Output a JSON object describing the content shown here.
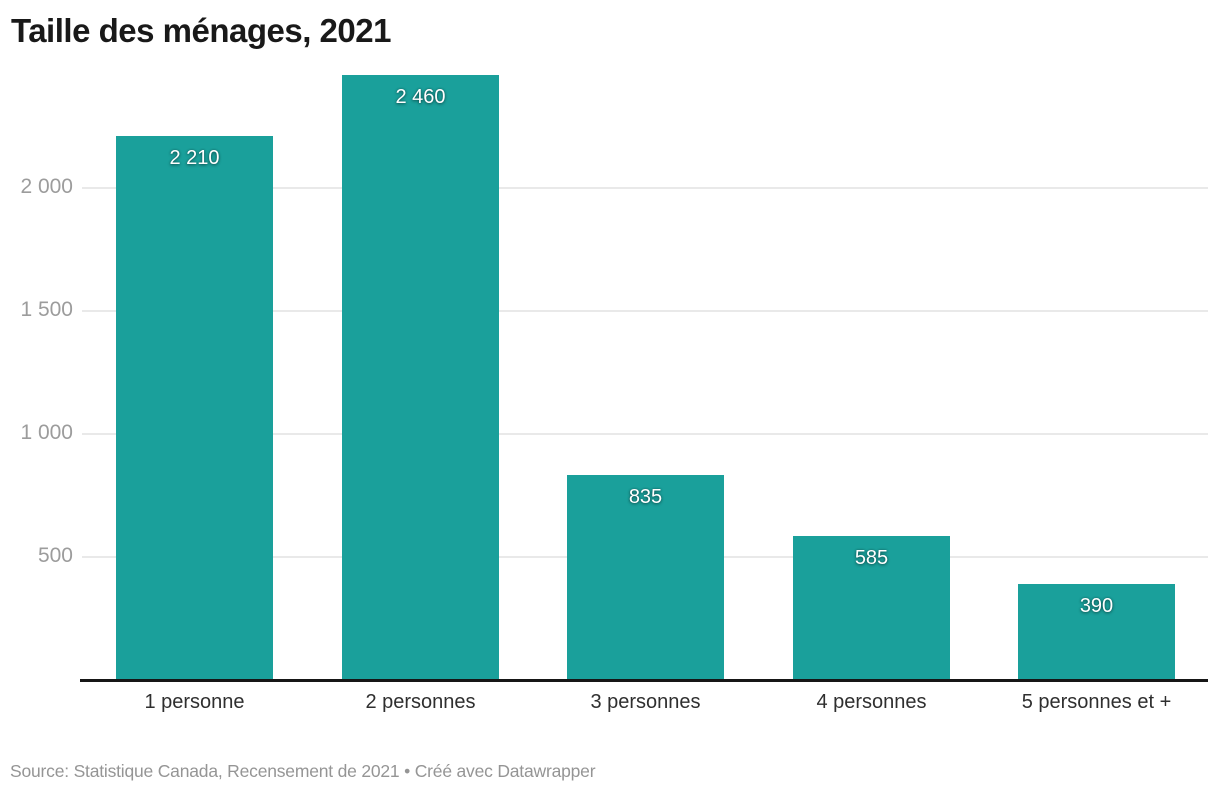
{
  "page": {
    "title": "Taille des ménages, 2021",
    "source": "Source: Statistique Canada, Recensement de 2021 • Créé avec Datawrapper"
  },
  "colors": {
    "bar": "#1AA09B",
    "grid": "#E9E9E9",
    "axis_line": "#161616",
    "tick_text": "#9C9C9C",
    "category_text": "#2F2F2F",
    "value_text": "#FFFFFF",
    "title_text": "#191919",
    "source_text": "#959595"
  },
  "chart_data": {
    "type": "bar",
    "title": "Taille des ménages, 2021",
    "categories": [
      "1 personne",
      "2 personnes",
      "3 personnes",
      "4 personnes",
      "5 personnes et +"
    ],
    "values": [
      2210,
      2460,
      835,
      585,
      390
    ],
    "value_labels": [
      "2 210",
      "2 460",
      "835",
      "585",
      "390"
    ],
    "yticks": [
      500,
      1000,
      1500,
      2000
    ],
    "ytick_labels": [
      "500",
      "1 000",
      "1 500",
      "2 000"
    ],
    "ylim": [
      0,
      2460
    ],
    "xlabel": "",
    "ylabel": "",
    "grid": "horizontal",
    "legend": "none"
  }
}
